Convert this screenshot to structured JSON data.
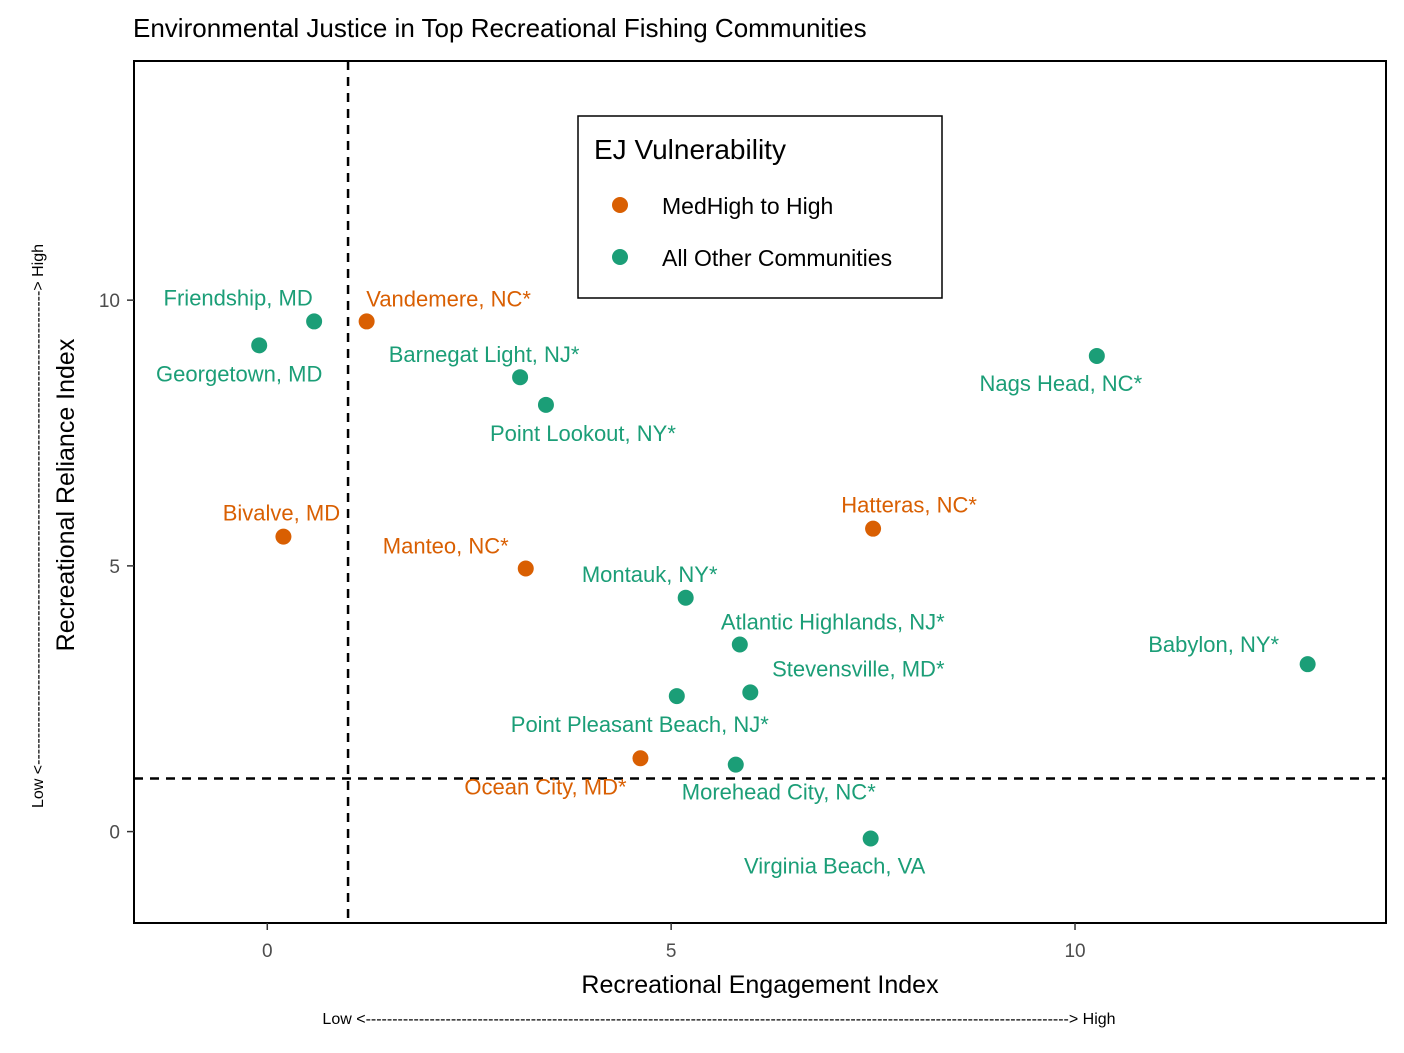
{
  "chart_data": {
    "type": "scatter",
    "title": "Environmental Justice in Top Recreational Fishing Communities",
    "xlabel": "Recreational Engagement Index",
    "ylabel": "Recreational Reliance Index",
    "x_arrow_label": "Low <------------------------------------------------------------------------------------------------------------------------------------> High",
    "y_arrow_label": "Low <-----------------------------------------------------------------------------------------> High",
    "xlim": [
      -1.65,
      13.85
    ],
    "ylim": [
      -1.72,
      14.5
    ],
    "x_ticks": [
      {
        "value": 0,
        "label": "0"
      },
      {
        "value": 5,
        "label": "5"
      },
      {
        "value": 10,
        "label": "10"
      }
    ],
    "y_ticks": [
      {
        "value": 0,
        "label": "0"
      },
      {
        "value": 5,
        "label": "5"
      },
      {
        "value": 10,
        "label": "10"
      }
    ],
    "grid": false,
    "reference_lines": {
      "x": 1.0,
      "y": 1.0,
      "style": "dashed"
    },
    "legend": {
      "title": "EJ Vulnerability",
      "position": "top-center",
      "entries": [
        {
          "label": "MedHigh to High",
          "color": "#D95F02"
        },
        {
          "label": "All Other Communities",
          "color": "#1B9E77"
        }
      ]
    },
    "points": [
      {
        "name": "Friendship, MD",
        "x": 0.58,
        "y": 9.6,
        "group": 1
      },
      {
        "name": "Georgetown, MD",
        "x": -0.1,
        "y": 9.15,
        "group": 1
      },
      {
        "name": "Vandemere, NC*",
        "x": 1.23,
        "y": 9.6,
        "group": 0
      },
      {
        "name": "Barnegat Light, NJ*",
        "x": 3.13,
        "y": 8.55,
        "group": 1
      },
      {
        "name": "Point Lookout, NY*",
        "x": 3.45,
        "y": 8.03,
        "group": 1
      },
      {
        "name": "Nags Head, NC*",
        "x": 10.27,
        "y": 8.95,
        "group": 1
      },
      {
        "name": "Bivalve, MD",
        "x": 0.2,
        "y": 5.55,
        "group": 0
      },
      {
        "name": "Manteo, NC*",
        "x": 3.2,
        "y": 4.95,
        "group": 0
      },
      {
        "name": "Hatteras, NC*",
        "x": 7.5,
        "y": 5.7,
        "group": 0
      },
      {
        "name": "Montauk, NY*",
        "x": 5.18,
        "y": 4.4,
        "group": 1
      },
      {
        "name": "Atlantic Highlands, NJ*",
        "x": 5.85,
        "y": 3.52,
        "group": 1
      },
      {
        "name": "Babylon, NY*",
        "x": 12.88,
        "y": 3.15,
        "group": 1
      },
      {
        "name": "Stevensville, MD*",
        "x": 5.98,
        "y": 2.62,
        "group": 1
      },
      {
        "name": "Point Pleasant Beach, NJ*",
        "x": 5.07,
        "y": 2.55,
        "group": 1
      },
      {
        "name": "Ocean City, MD*",
        "x": 4.62,
        "y": 1.38,
        "group": 0
      },
      {
        "name": "Morehead City, NC*",
        "x": 5.8,
        "y": 1.26,
        "group": 1
      },
      {
        "name": "Virginia Beach, VA",
        "x": 7.47,
        "y": -0.13,
        "group": 1
      }
    ]
  }
}
